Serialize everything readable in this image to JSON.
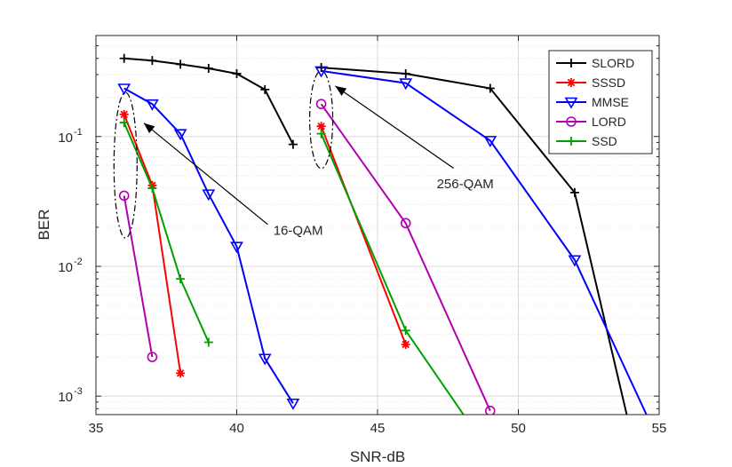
{
  "chart_data": {
    "type": "line",
    "xlabel": "SNR-dB",
    "ylabel": "BER",
    "xlim": [
      35,
      55
    ],
    "ylim": [
      0.00072,
      0.6
    ],
    "yscale": "log",
    "grid": true,
    "legend_position": "top-right",
    "x_ticks": [
      {
        "value": 35,
        "label": "35"
      },
      {
        "value": 40,
        "label": "40"
      },
      {
        "value": 45,
        "label": "45"
      },
      {
        "value": 50,
        "label": "50"
      },
      {
        "value": 55,
        "label": "55"
      }
    ],
    "y_ticks": [
      {
        "value": 0.001,
        "base": "10",
        "exp": "-3"
      },
      {
        "value": 0.01,
        "base": "10",
        "exp": "-2"
      },
      {
        "value": 0.1,
        "base": "10",
        "exp": "-1"
      }
    ],
    "series": [
      {
        "name": "SLORD",
        "color": "#000000",
        "marker": "plus",
        "segments": [
          [
            [
              36,
              0.4
            ],
            [
              37,
              0.385
            ],
            [
              38,
              0.36
            ],
            [
              39,
              0.335
            ],
            [
              40,
              0.305
            ],
            [
              41,
              0.23
            ],
            [
              42,
              0.087
            ]
          ],
          [
            [
              43,
              0.34
            ],
            [
              46,
              0.305
            ],
            [
              49,
              0.235
            ],
            [
              52,
              0.037
            ],
            [
              53.85,
              0.00072
            ]
          ]
        ]
      },
      {
        "name": "SSSD",
        "color": "#ff0000",
        "marker": "asterisk",
        "segments": [
          [
            [
              36,
              0.148
            ],
            [
              37,
              0.042
            ],
            [
              38,
              0.0015
            ]
          ],
          [
            [
              43,
              0.12
            ],
            [
              46,
              0.0025
            ]
          ]
        ]
      },
      {
        "name": "MMSE",
        "color": "#0000ff",
        "marker": "triangle-down",
        "segments": [
          [
            [
              36,
              0.235
            ],
            [
              37,
              0.178
            ],
            [
              38,
              0.105
            ],
            [
              39,
              0.036
            ],
            [
              40,
              0.0142
            ],
            [
              41,
              0.00195
            ],
            [
              42,
              0.00088
            ]
          ],
          [
            [
              43,
              0.32
            ],
            [
              46,
              0.258
            ],
            [
              49,
              0.093
            ],
            [
              52,
              0.0112
            ],
            [
              54.55,
              0.00072
            ]
          ]
        ]
      },
      {
        "name": "LORD",
        "color": "#b000b0",
        "marker": "circle",
        "segments": [
          [
            [
              36,
              0.035
            ],
            [
              37,
              0.002
            ]
          ],
          [
            [
              43,
              0.178
            ],
            [
              46,
              0.0215
            ],
            [
              49,
              0.00077
            ]
          ]
        ]
      },
      {
        "name": "SSD",
        "color": "#00a000",
        "marker": "plus",
        "segments": [
          [
            [
              36,
              0.128
            ],
            [
              37,
              0.04
            ],
            [
              38,
              0.008
            ],
            [
              39,
              0.0026
            ]
          ],
          [
            [
              43,
              0.105
            ],
            [
              46,
              0.0032
            ],
            [
              48.05,
              0.00072
            ]
          ]
        ]
      }
    ],
    "annotations": [
      {
        "text": "16-QAM",
        "ellipse_center": [
          36.05,
          0.06
        ],
        "arrow_from": [
          41.1,
          0.021
        ],
        "arrow_to": [
          36.7,
          0.127
        ],
        "label_at": [
          41.3,
          0.0175
        ]
      },
      {
        "text": "256-QAM",
        "ellipse_center": [
          43.0,
          0.135
        ],
        "arrow_from": [
          47.7,
          0.057
        ],
        "arrow_to": [
          43.5,
          0.245
        ],
        "label_at": [
          47.1,
          0.04
        ]
      }
    ]
  }
}
